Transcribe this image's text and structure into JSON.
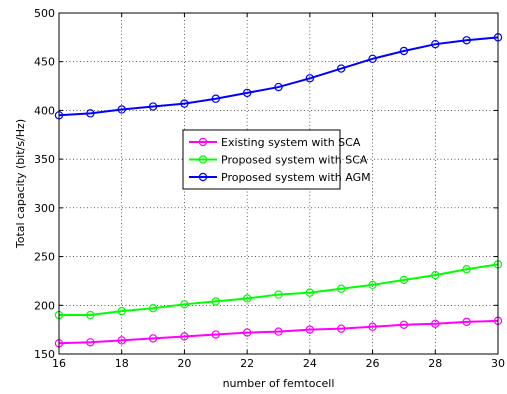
{
  "chart_data": {
    "type": "line",
    "xlabel": "number of femtocell",
    "ylabel": "Total capacity (bit/s/Hz)",
    "xlim": [
      16,
      30
    ],
    "ylim": [
      150,
      500
    ],
    "xticks": [
      16,
      18,
      20,
      22,
      24,
      26,
      28,
      30
    ],
    "yticks": [
      150,
      200,
      250,
      300,
      350,
      400,
      450,
      500
    ],
    "grid": true,
    "legend_position": "center",
    "x": [
      16,
      17,
      18,
      19,
      20,
      21,
      22,
      23,
      24,
      25,
      26,
      27,
      28,
      29,
      30
    ],
    "series": [
      {
        "name": "Existing system with SCA",
        "color": "#ff00ff",
        "marker": "circle",
        "values": [
          161,
          162,
          164,
          166,
          168,
          170,
          172,
          173,
          175,
          176,
          178,
          180,
          181,
          183,
          184
        ]
      },
      {
        "name": "Proposed system with SCA",
        "color": "#00ff00",
        "marker": "circle",
        "values": [
          190,
          190,
          194,
          197,
          201,
          204,
          207,
          211,
          213,
          217,
          221,
          226,
          231,
          237,
          242
        ]
      },
      {
        "name": "Proposed system with AGM",
        "color": "#0000ff",
        "marker": "circle",
        "values": [
          395,
          397,
          401,
          404,
          407,
          412,
          418,
          424,
          433,
          443,
          453,
          461,
          468,
          472,
          475
        ]
      }
    ]
  }
}
